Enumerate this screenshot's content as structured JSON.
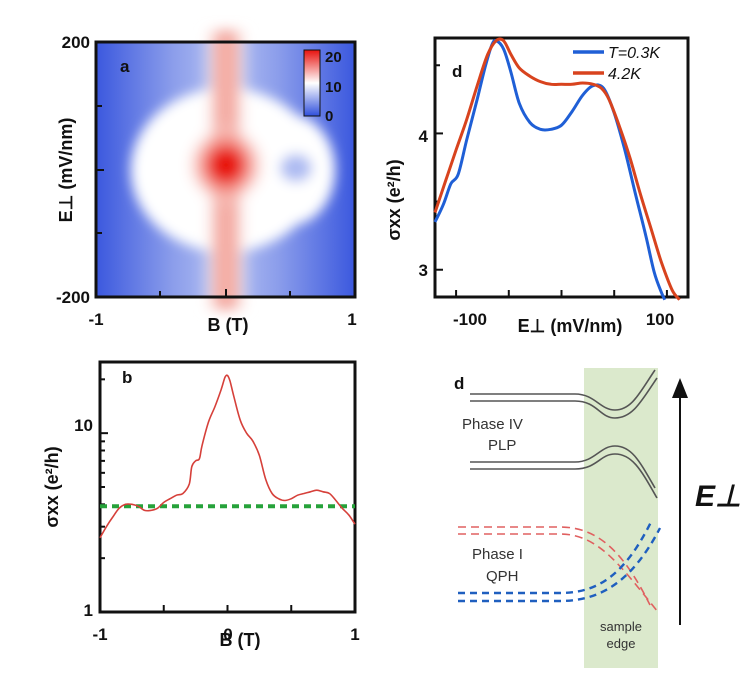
{
  "colors": {
    "map_high": "#e8120e",
    "map_low": "#2f4fdc",
    "blue_line": "#1f5fd6",
    "red_line": "#d8431e",
    "trace_b": "#d6403a",
    "dashed_green": "#26a23a",
    "edge_band": "#dbe9cc",
    "level_gray": "#555555",
    "level_red": "#e06060",
    "level_blue": "#1f5fbf"
  },
  "chart_data": [
    {
      "panel": "a",
      "type": "heatmap",
      "panel_label": "a",
      "xlabel": "B (T)",
      "ylabel": "E⊥ (mV/nm)",
      "xlim": [
        -1,
        1
      ],
      "ylim": [
        -200,
        200
      ],
      "x_tick_labels": [
        "-1",
        "1"
      ],
      "y_tick_labels": [
        "200",
        "-200"
      ],
      "colorbar": {
        "range": [
          0,
          20
        ],
        "tick_labels": [
          "20",
          "10",
          "0"
        ]
      },
      "features": [
        {
          "kind": "vertical_ridge",
          "x": 0,
          "width": 0.12,
          "value": 12
        },
        {
          "kind": "ring",
          "x": 0,
          "y": 0,
          "rx": 0.62,
          "ry": 85,
          "value": 4
        },
        {
          "kind": "peak",
          "x": 0,
          "y": 0,
          "value": 20
        },
        {
          "kind": "dip",
          "x": 0.55,
          "y": 5,
          "value": 0
        }
      ]
    },
    {
      "panel": "b",
      "type": "line",
      "panel_label": "b",
      "xlabel": "B (T)",
      "ylabel": "σxx (e²/h)",
      "xlim": [
        -1,
        1
      ],
      "ylim": [
        1,
        25
      ],
      "yscale": "log",
      "x_tick_labels": [
        "-1",
        "0",
        "1"
      ],
      "y_tick_labels": [
        "10",
        "1"
      ],
      "reference_line": {
        "y": 3.9,
        "style": "dashed"
      },
      "series": [
        {
          "name": "σxx",
          "x": [
            -1.0,
            -0.95,
            -0.9,
            -0.85,
            -0.8,
            -0.75,
            -0.7,
            -0.65,
            -0.6,
            -0.55,
            -0.5,
            -0.45,
            -0.4,
            -0.35,
            -0.3,
            -0.28,
            -0.25,
            -0.22,
            -0.2,
            -0.15,
            -0.1,
            -0.05,
            -0.02,
            0.0,
            0.02,
            0.05,
            0.1,
            0.15,
            0.2,
            0.25,
            0.3,
            0.35,
            0.4,
            0.45,
            0.5,
            0.55,
            0.6,
            0.65,
            0.7,
            0.75,
            0.8,
            0.85,
            0.9,
            0.95,
            1.0
          ],
          "y": [
            2.6,
            3.0,
            3.4,
            3.8,
            4.0,
            4.0,
            3.9,
            3.7,
            3.7,
            3.8,
            4.1,
            4.3,
            4.5,
            4.6,
            5.2,
            6.5,
            7.0,
            7.2,
            8.5,
            11.5,
            14.0,
            17.5,
            20.5,
            21.0,
            19.5,
            16.0,
            11.8,
            10.0,
            9.0,
            7.5,
            5.5,
            4.6,
            4.3,
            4.2,
            4.3,
            4.5,
            4.6,
            4.7,
            4.8,
            4.7,
            4.6,
            4.2,
            3.8,
            3.5,
            3.1
          ]
        }
      ]
    },
    {
      "panel": "d",
      "type": "line",
      "panel_label": "d",
      "xlabel": "E⊥ (mV/nm)",
      "ylabel": "σxx (e²/h)",
      "xlim": [
        -120,
        120
      ],
      "ylim": [
        2.8,
        4.7
      ],
      "x_tick_labels": [
        "-100",
        "100"
      ],
      "y_tick_labels": [
        "4",
        "3"
      ],
      "legend": [
        "T=0.3K",
        "4.2K"
      ],
      "legend_position": "top-right",
      "series": [
        {
          "name": "T=0.3K",
          "x": [
            -120,
            -112,
            -105,
            -98,
            -90,
            -80,
            -72,
            -66,
            -62,
            -55,
            -48,
            -40,
            -30,
            -20,
            -10,
            0,
            10,
            20,
            30,
            40,
            50,
            60,
            70,
            80,
            88,
            95,
            98
          ],
          "y": [
            3.35,
            3.48,
            3.63,
            3.7,
            3.95,
            4.25,
            4.5,
            4.65,
            4.68,
            4.62,
            4.45,
            4.22,
            4.08,
            4.03,
            4.03,
            4.06,
            4.16,
            4.28,
            4.35,
            4.33,
            4.15,
            3.88,
            3.56,
            3.25,
            2.98,
            2.83,
            2.78
          ]
        },
        {
          "name": "4.2K",
          "x": [
            -120,
            -110,
            -100,
            -90,
            -80,
            -70,
            -62,
            -55,
            -48,
            -40,
            -30,
            -20,
            -10,
            0,
            10,
            20,
            30,
            38,
            45,
            55,
            65,
            75,
            85,
            95,
            105,
            112
          ],
          "y": [
            3.42,
            3.65,
            3.88,
            4.1,
            4.35,
            4.58,
            4.68,
            4.68,
            4.58,
            4.48,
            4.42,
            4.38,
            4.36,
            4.36,
            4.36,
            4.37,
            4.36,
            4.33,
            4.25,
            4.05,
            3.82,
            3.55,
            3.3,
            3.05,
            2.85,
            2.78
          ]
        }
      ]
    },
    {
      "panel": "d-schematic",
      "type": "diagram",
      "panel_label": "d",
      "axis_label": "E⊥",
      "phase_iv_lines": [
        "Phase IV",
        "PLP"
      ],
      "phase_i_lines": [
        "Phase I",
        "QPH"
      ],
      "edge_lines": [
        "sample",
        "edge"
      ]
    }
  ]
}
